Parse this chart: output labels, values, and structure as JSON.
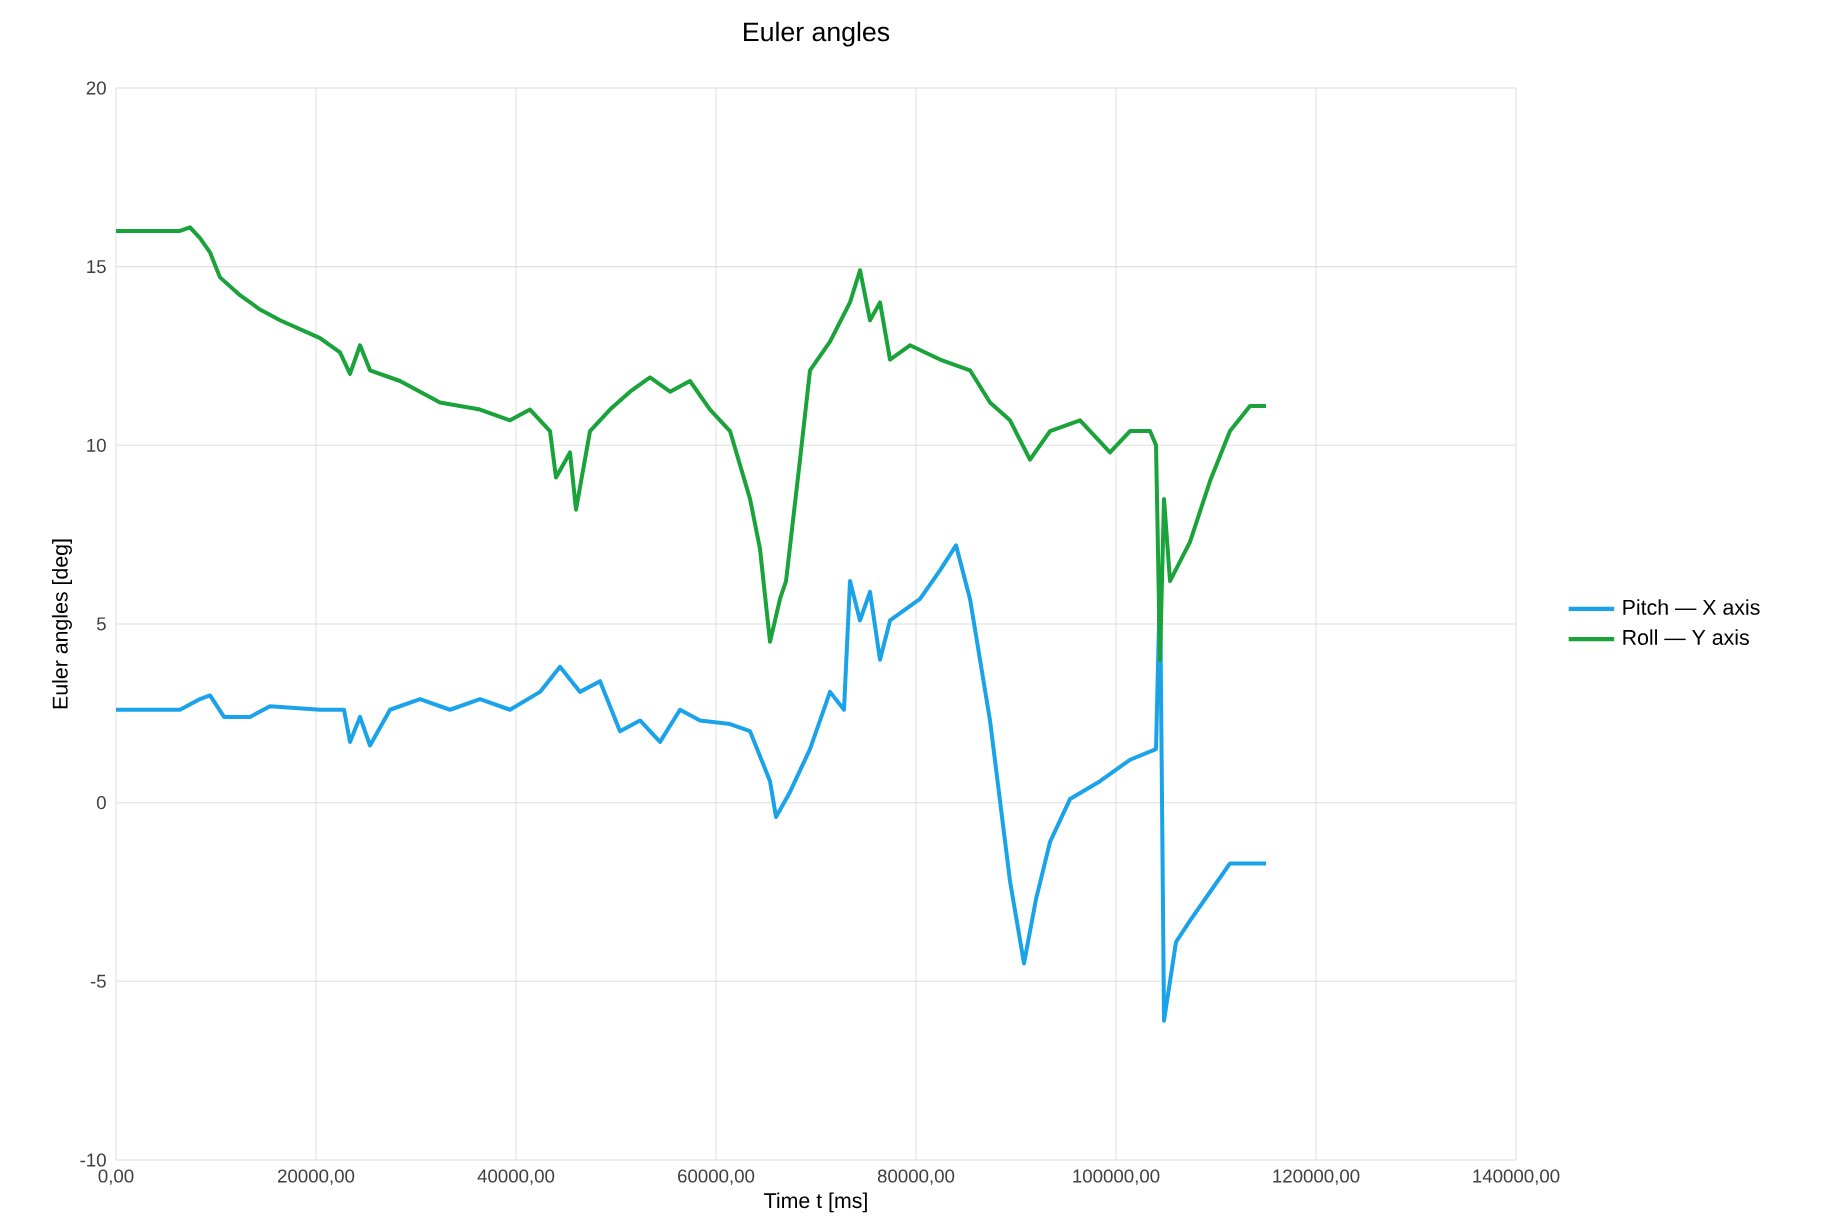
{
  "chart_data": {
    "type": "line",
    "title": "Euler angles",
    "xlabel": "Time t [ms]",
    "ylabel": "Euler angles [deg]",
    "xlim": [
      0,
      140000
    ],
    "ylim": [
      -10,
      20
    ],
    "xticks": [
      {
        "value": 0,
        "label": "0,00"
      },
      {
        "value": 20000,
        "label": "20000,00"
      },
      {
        "value": 40000,
        "label": "40000,00"
      },
      {
        "value": 60000,
        "label": "60000,00"
      },
      {
        "value": 80000,
        "label": "80000,00"
      },
      {
        "value": 100000,
        "label": "100000,00"
      },
      {
        "value": 120000,
        "label": "120000,00"
      },
      {
        "value": 140000,
        "label": "140000,00"
      }
    ],
    "yticks": [
      -10,
      -5,
      0,
      5,
      10,
      15,
      20
    ],
    "grid": true,
    "legend": "right",
    "series": [
      {
        "name": "Pitch — X axis",
        "color": "#1aa3e8",
        "x": [
          0,
          6400,
          8400,
          9400,
          10800,
          13400,
          15400,
          20400,
          22800,
          23400,
          24400,
          25400,
          27400,
          30400,
          33400,
          36400,
          39400,
          42400,
          44400,
          46400,
          48400,
          50400,
          52400,
          54400,
          56400,
          58400,
          61400,
          63400,
          65400,
          66000,
          67400,
          69400,
          71400,
          72800,
          73400,
          74400,
          75400,
          76400,
          77400,
          80400,
          82400,
          84000,
          85400,
          87400,
          89400,
          90800,
          92000,
          93400,
          95400,
          98400,
          101400,
          104000,
          104400,
          104800,
          106000,
          107400,
          109400,
          111400,
          115000
        ],
        "values": [
          2.6,
          2.6,
          2.9,
          3.0,
          2.4,
          2.4,
          2.7,
          2.6,
          2.6,
          1.7,
          2.4,
          1.6,
          2.6,
          2.9,
          2.6,
          2.9,
          2.6,
          3.1,
          3.8,
          3.1,
          3.4,
          2.0,
          2.3,
          1.7,
          2.6,
          2.3,
          2.2,
          2.0,
          0.6,
          -0.4,
          0.3,
          1.5,
          3.1,
          2.6,
          6.2,
          5.1,
          5.9,
          4.0,
          5.1,
          5.7,
          6.5,
          7.2,
          5.7,
          2.3,
          -2.2,
          -4.5,
          -2.7,
          -1.1,
          0.1,
          0.6,
          1.2,
          1.5,
          6.2,
          -6.1,
          -3.9,
          -3.3,
          -2.5,
          -1.7,
          -1.7
        ]
      },
      {
        "name": "Roll — Y axis",
        "color": "#1aa33a",
        "x": [
          0,
          6400,
          7400,
          8400,
          9400,
          10400,
          12400,
          14400,
          16400,
          20400,
          22400,
          23400,
          24400,
          25400,
          28400,
          32400,
          36400,
          39400,
          41400,
          43400,
          44000,
          45400,
          46000,
          47400,
          49400,
          51400,
          53400,
          55400,
          57400,
          59400,
          61400,
          63400,
          64400,
          65400,
          66400,
          67000,
          68400,
          69400,
          71400,
          73400,
          74400,
          75400,
          76400,
          77400,
          79400,
          82400,
          85400,
          87400,
          89400,
          91400,
          93400,
          96400,
          99400,
          101400,
          103400,
          104000,
          104400,
          104800,
          105400,
          107400,
          109400,
          111400,
          113400,
          115000
        ],
        "values": [
          16.0,
          16.0,
          16.1,
          15.8,
          15.4,
          14.7,
          14.2,
          13.8,
          13.5,
          13.0,
          12.6,
          12.0,
          12.8,
          12.1,
          11.8,
          11.2,
          11.0,
          10.7,
          11.0,
          10.4,
          9.1,
          9.8,
          8.2,
          10.4,
          11.0,
          11.5,
          11.9,
          11.5,
          11.8,
          11.0,
          10.4,
          8.5,
          7.1,
          4.5,
          5.7,
          6.2,
          9.6,
          12.1,
          12.9,
          14.0,
          14.9,
          13.5,
          14.0,
          12.4,
          12.8,
          12.4,
          12.1,
          11.2,
          10.7,
          9.6,
          10.4,
          10.7,
          9.8,
          10.4,
          10.4,
          10.0,
          4.0,
          8.5,
          6.2,
          7.3,
          9.0,
          10.4,
          11.1,
          11.1
        ]
      }
    ]
  }
}
